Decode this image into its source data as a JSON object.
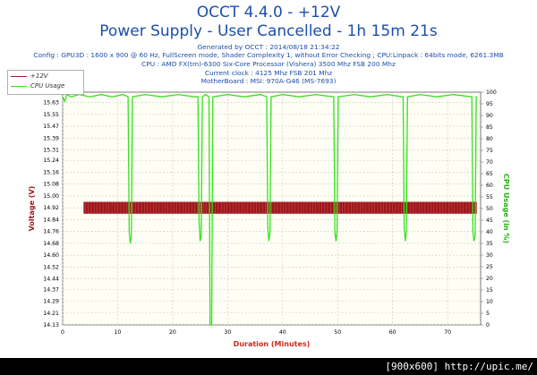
{
  "header": {
    "title": "OCCT 4.4.0 - +12V",
    "subtitle": "Power Supply - User Cancelled - 1h 15m 21s",
    "generated": "Generated by OCCT : 2014/08/18 21:34:22",
    "config": "Config : GPU3D : 1600 x 900 @ 60 Hz, FullScreen mode, Shader Complexity 1, without Error Checking ; CPU:Linpack : 64bits mode, 6261.3MB",
    "cpu": "CPU : AMD FX(tm)-6300 Six-Core Processor (Vishera) 3500 Mhz FSB 200 Mhz",
    "clock": "Current clock : 4125 Mhz FSB 201 Mhz",
    "motherboard": "MotherBoard : MSI: 970A-G46 (MS-7693)"
  },
  "colors": {
    "voltage": "#a0161b",
    "cpu": "#35e01e",
    "axis_left": "#a0161b",
    "axis_right": "#27b30f",
    "axis_bottom": "#cc2a1a",
    "plot_bg": "#fffff5",
    "grid": "#c8c8c8"
  },
  "footer": "[900x600] http://upic.me/",
  "chart_data": {
    "type": "line",
    "xlabel": "Duration (Minutes)",
    "ylabel_left": "Voltage (V)",
    "ylabel_right": "CPU Usage (in %)",
    "xlim": [
      0,
      76
    ],
    "ylim_left": [
      14.13,
      15.7
    ],
    "ylim_right": [
      0,
      100
    ],
    "grid": true,
    "legend_position": "top-left",
    "x_ticks": [
      0,
      10,
      20,
      30,
      40,
      50,
      60,
      70
    ],
    "y_ticks_left": [
      "14.13",
      "14.21",
      "14.29",
      "14.37",
      "14.44",
      "14.52",
      "14.60",
      "14.68",
      "14.76",
      "14.84",
      "14.92",
      "15.00",
      "15.08",
      "15.16",
      "15.24",
      "15.31",
      "15.39",
      "15.47",
      "15.55",
      "15.63"
    ],
    "y_ticks_right": [
      "0",
      "5",
      "10",
      "15",
      "20",
      "25",
      "30",
      "35",
      "40",
      "45",
      "50",
      "55",
      "60",
      "65",
      "70",
      "75",
      "80",
      "85",
      "90",
      "95",
      "100"
    ],
    "series": [
      {
        "name": "+12V",
        "axis": "left",
        "style": "band",
        "x_start": 3.8,
        "x_end": 75.3,
        "upper": 14.96,
        "lower": 14.88
      },
      {
        "name": "CPU Usage",
        "axis": "right",
        "style": "line",
        "points": [
          [
            0,
            98
          ],
          [
            0.4,
            96
          ],
          [
            0.8,
            99
          ],
          [
            1.5,
            98
          ],
          [
            3,
            99
          ],
          [
            5,
            98
          ],
          [
            7,
            99
          ],
          [
            9,
            98
          ],
          [
            11,
            99
          ],
          [
            11.9,
            98
          ],
          [
            12.1,
            40
          ],
          [
            12.3,
            35
          ],
          [
            12.5,
            38
          ],
          [
            12.7,
            98
          ],
          [
            15,
            99
          ],
          [
            18,
            98
          ],
          [
            21,
            99
          ],
          [
            24,
            98
          ],
          [
            24.6,
            98
          ],
          [
            24.8,
            45
          ],
          [
            25,
            36
          ],
          [
            25.2,
            38
          ],
          [
            25.4,
            98
          ],
          [
            26,
            99
          ],
          [
            26.6,
            98
          ],
          [
            26.8,
            0
          ],
          [
            27.1,
            0
          ],
          [
            27.3,
            98
          ],
          [
            30,
            99
          ],
          [
            33,
            98
          ],
          [
            36,
            99
          ],
          [
            37.1,
            98
          ],
          [
            37.3,
            42
          ],
          [
            37.5,
            36
          ],
          [
            37.7,
            40
          ],
          [
            37.9,
            98
          ],
          [
            40,
            99
          ],
          [
            43,
            98
          ],
          [
            46,
            99
          ],
          [
            49.3,
            98
          ],
          [
            49.5,
            40
          ],
          [
            49.7,
            36
          ],
          [
            49.9,
            40
          ],
          [
            50.1,
            98
          ],
          [
            53,
            99
          ],
          [
            56,
            98
          ],
          [
            59,
            99
          ],
          [
            61.9,
            98
          ],
          [
            62.1,
            42
          ],
          [
            62.3,
            36
          ],
          [
            62.5,
            40
          ],
          [
            62.7,
            98
          ],
          [
            65,
            99
          ],
          [
            68,
            98
          ],
          [
            71,
            99
          ],
          [
            74.4,
            98
          ],
          [
            74.6,
            40
          ],
          [
            74.8,
            36
          ],
          [
            75,
            38
          ],
          [
            75.2,
            98
          ],
          [
            75.4,
            98
          ]
        ]
      }
    ]
  }
}
